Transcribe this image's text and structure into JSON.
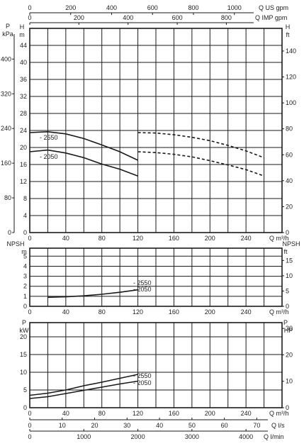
{
  "chart_data": [
    {
      "type": "line",
      "name_panel": "head",
      "x_unit": "Q m³/h",
      "x_ticks": [
        0,
        40,
        80,
        120,
        160,
        200,
        240
      ],
      "xlim": [
        0,
        280
      ],
      "left_axis_H": {
        "label": "H",
        "unit": "m",
        "ticks": [
          0,
          4,
          8,
          12,
          16,
          20,
          24,
          28,
          32,
          36,
          40,
          44
        ],
        "ylim": [
          0,
          48
        ]
      },
      "left_axis_P": {
        "label": "P",
        "unit": "kPa",
        "ticks": [
          0,
          80,
          160,
          240,
          320,
          400
        ]
      },
      "right_axis_H": {
        "label": "H",
        "unit": "ft",
        "ticks": [
          0,
          20,
          40,
          60,
          80,
          100,
          120,
          140
        ]
      },
      "top_axis_usgpm": {
        "unit": "Q US gpm",
        "ticks": [
          0,
          200,
          400,
          600,
          800,
          1000
        ]
      },
      "top_axis_impgpm": {
        "unit": "Q IMP gpm",
        "ticks": [
          0,
          200,
          400,
          600,
          800
        ]
      },
      "series": [
        {
          "name": "2550",
          "style": "solid",
          "x": [
            0,
            20,
            40,
            60,
            80,
            100,
            120
          ],
          "y": [
            23.5,
            23.7,
            23.2,
            22.1,
            20.6,
            19.0,
            17.0
          ]
        },
        {
          "name": "2050",
          "style": "solid",
          "x": [
            0,
            20,
            40,
            60,
            80,
            100,
            120
          ],
          "y": [
            19.0,
            19.4,
            18.7,
            17.6,
            16.1,
            14.9,
            13.3
          ]
        },
        {
          "name": "",
          "style": "dashed",
          "x": [
            120,
            140,
            160,
            180,
            200,
            220,
            240,
            260
          ],
          "y": [
            23.5,
            23.4,
            23.0,
            22.4,
            21.6,
            20.5,
            19.2,
            17.6
          ]
        },
        {
          "name": "",
          "style": "dashed",
          "x": [
            120,
            140,
            160,
            180,
            200,
            220,
            240,
            260
          ],
          "y": [
            19.0,
            18.8,
            18.4,
            17.8,
            16.9,
            15.9,
            14.8,
            13.3
          ]
        }
      ]
    },
    {
      "type": "line",
      "name_panel": "npsh",
      "x_unit": "Q m³/h",
      "x_ticks": [
        0,
        40,
        80,
        120,
        160,
        200,
        240
      ],
      "xlim": [
        0,
        280
      ],
      "left_axis": {
        "label": "NPSH",
        "unit": "m",
        "ticks": [
          0,
          1,
          2,
          3,
          4,
          5
        ],
        "ylim": [
          0,
          5.8
        ]
      },
      "right_axis": {
        "label": "NPSH",
        "unit": "ft",
        "ticks": [
          0,
          5,
          10,
          15
        ]
      },
      "series": [
        {
          "name": "2550 / 2050",
          "x": [
            20,
            40,
            60,
            80,
            100,
            120
          ],
          "y": [
            0.9,
            0.95,
            1.05,
            1.2,
            1.4,
            1.65
          ]
        }
      ],
      "series_labels": [
        "2550",
        "2050"
      ]
    },
    {
      "type": "line",
      "name_panel": "power",
      "x_unit": "Q m³/h",
      "x_ticks": [
        0,
        40,
        80,
        120,
        160,
        200,
        240
      ],
      "xlim": [
        0,
        280
      ],
      "left_axis": {
        "label": "P",
        "unit": "kW",
        "ticks": [
          0,
          5,
          10,
          15,
          20
        ],
        "ylim": [
          0,
          24
        ]
      },
      "right_axis": {
        "label": "P",
        "unit": "HP",
        "ticks": [
          0,
          10,
          20,
          30
        ]
      },
      "bottom_axis_ls": {
        "unit": "Q l/s",
        "ticks": [
          0,
          10,
          20,
          30,
          40,
          50,
          60,
          70
        ]
      },
      "bottom_axis_lmin": {
        "unit": "Q l/min",
        "ticks": [
          0,
          1000,
          2000,
          3000,
          4000
        ]
      },
      "series": [
        {
          "name": "2550",
          "x": [
            0,
            20,
            40,
            60,
            80,
            100,
            120
          ],
          "y": [
            3.5,
            4.1,
            5.0,
            6.2,
            7.2,
            8.3,
            9.4
          ]
        },
        {
          "name": "2050",
          "x": [
            0,
            20,
            40,
            60,
            80,
            100,
            120
          ],
          "y": [
            2.6,
            3.1,
            4.0,
            4.9,
            5.8,
            6.7,
            7.5
          ]
        }
      ]
    }
  ]
}
